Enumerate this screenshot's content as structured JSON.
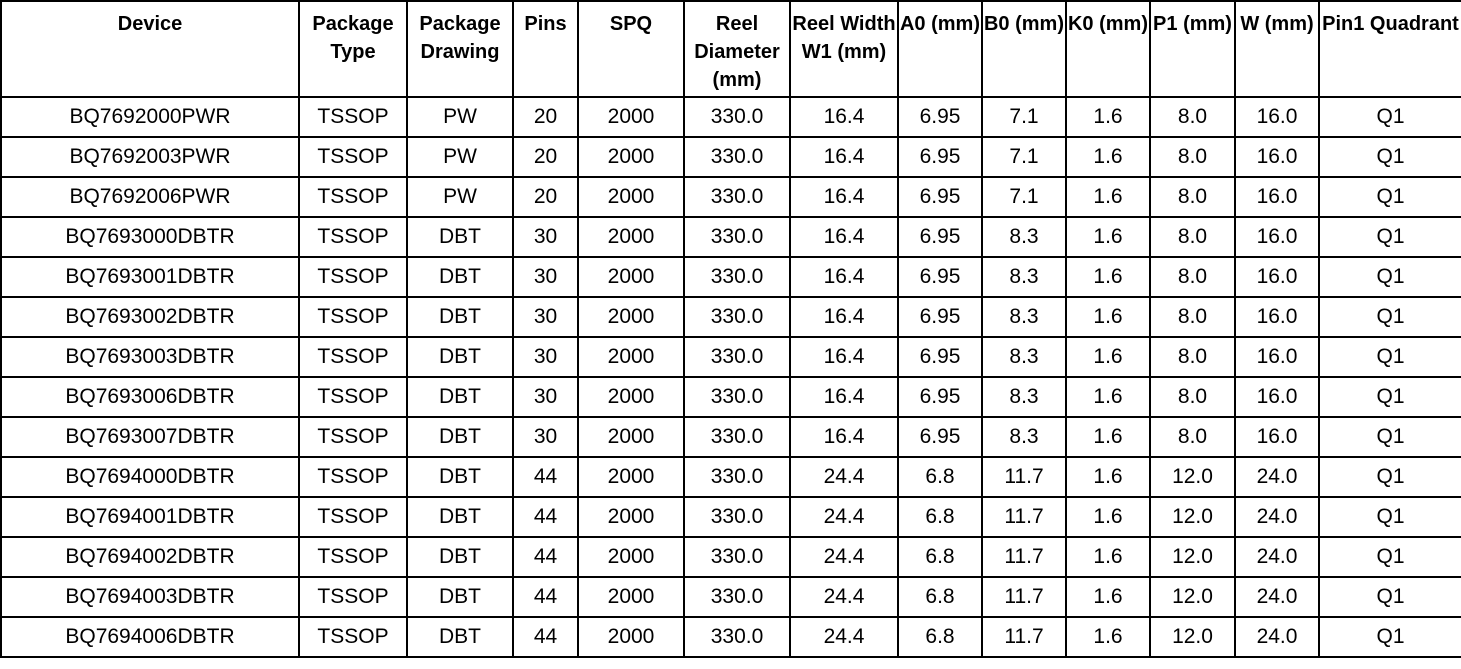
{
  "table": {
    "headers": [
      "Device",
      "Package Type",
      "Package Drawing",
      "Pins",
      "SPQ",
      "Reel Diameter (mm)",
      "Reel Width W1 (mm)",
      "A0 (mm)",
      "B0 (mm)",
      "K0 (mm)",
      "P1 (mm)",
      "W (mm)",
      "Pin1 Quadrant"
    ],
    "rows": [
      [
        "BQ7692000PWR",
        "TSSOP",
        "PW",
        "20",
        "2000",
        "330.0",
        "16.4",
        "6.95",
        "7.1",
        "1.6",
        "8.0",
        "16.0",
        "Q1"
      ],
      [
        "BQ7692003PWR",
        "TSSOP",
        "PW",
        "20",
        "2000",
        "330.0",
        "16.4",
        "6.95",
        "7.1",
        "1.6",
        "8.0",
        "16.0",
        "Q1"
      ],
      [
        "BQ7692006PWR",
        "TSSOP",
        "PW",
        "20",
        "2000",
        "330.0",
        "16.4",
        "6.95",
        "7.1",
        "1.6",
        "8.0",
        "16.0",
        "Q1"
      ],
      [
        "BQ7693000DBTR",
        "TSSOP",
        "DBT",
        "30",
        "2000",
        "330.0",
        "16.4",
        "6.95",
        "8.3",
        "1.6",
        "8.0",
        "16.0",
        "Q1"
      ],
      [
        "BQ7693001DBTR",
        "TSSOP",
        "DBT",
        "30",
        "2000",
        "330.0",
        "16.4",
        "6.95",
        "8.3",
        "1.6",
        "8.0",
        "16.0",
        "Q1"
      ],
      [
        "BQ7693002DBTR",
        "TSSOP",
        "DBT",
        "30",
        "2000",
        "330.0",
        "16.4",
        "6.95",
        "8.3",
        "1.6",
        "8.0",
        "16.0",
        "Q1"
      ],
      [
        "BQ7693003DBTR",
        "TSSOP",
        "DBT",
        "30",
        "2000",
        "330.0",
        "16.4",
        "6.95",
        "8.3",
        "1.6",
        "8.0",
        "16.0",
        "Q1"
      ],
      [
        "BQ7693006DBTR",
        "TSSOP",
        "DBT",
        "30",
        "2000",
        "330.0",
        "16.4",
        "6.95",
        "8.3",
        "1.6",
        "8.0",
        "16.0",
        "Q1"
      ],
      [
        "BQ7693007DBTR",
        "TSSOP",
        "DBT",
        "30",
        "2000",
        "330.0",
        "16.4",
        "6.95",
        "8.3",
        "1.6",
        "8.0",
        "16.0",
        "Q1"
      ],
      [
        "BQ7694000DBTR",
        "TSSOP",
        "DBT",
        "44",
        "2000",
        "330.0",
        "24.4",
        "6.8",
        "11.7",
        "1.6",
        "12.0",
        "24.0",
        "Q1"
      ],
      [
        "BQ7694001DBTR",
        "TSSOP",
        "DBT",
        "44",
        "2000",
        "330.0",
        "24.4",
        "6.8",
        "11.7",
        "1.6",
        "12.0",
        "24.0",
        "Q1"
      ],
      [
        "BQ7694002DBTR",
        "TSSOP",
        "DBT",
        "44",
        "2000",
        "330.0",
        "24.4",
        "6.8",
        "11.7",
        "1.6",
        "12.0",
        "24.0",
        "Q1"
      ],
      [
        "BQ7694003DBTR",
        "TSSOP",
        "DBT",
        "44",
        "2000",
        "330.0",
        "24.4",
        "6.8",
        "11.7",
        "1.6",
        "12.0",
        "24.0",
        "Q1"
      ],
      [
        "BQ7694006DBTR",
        "TSSOP",
        "DBT",
        "44",
        "2000",
        "330.0",
        "24.4",
        "6.8",
        "11.7",
        "1.6",
        "12.0",
        "24.0",
        "Q1"
      ]
    ]
  }
}
